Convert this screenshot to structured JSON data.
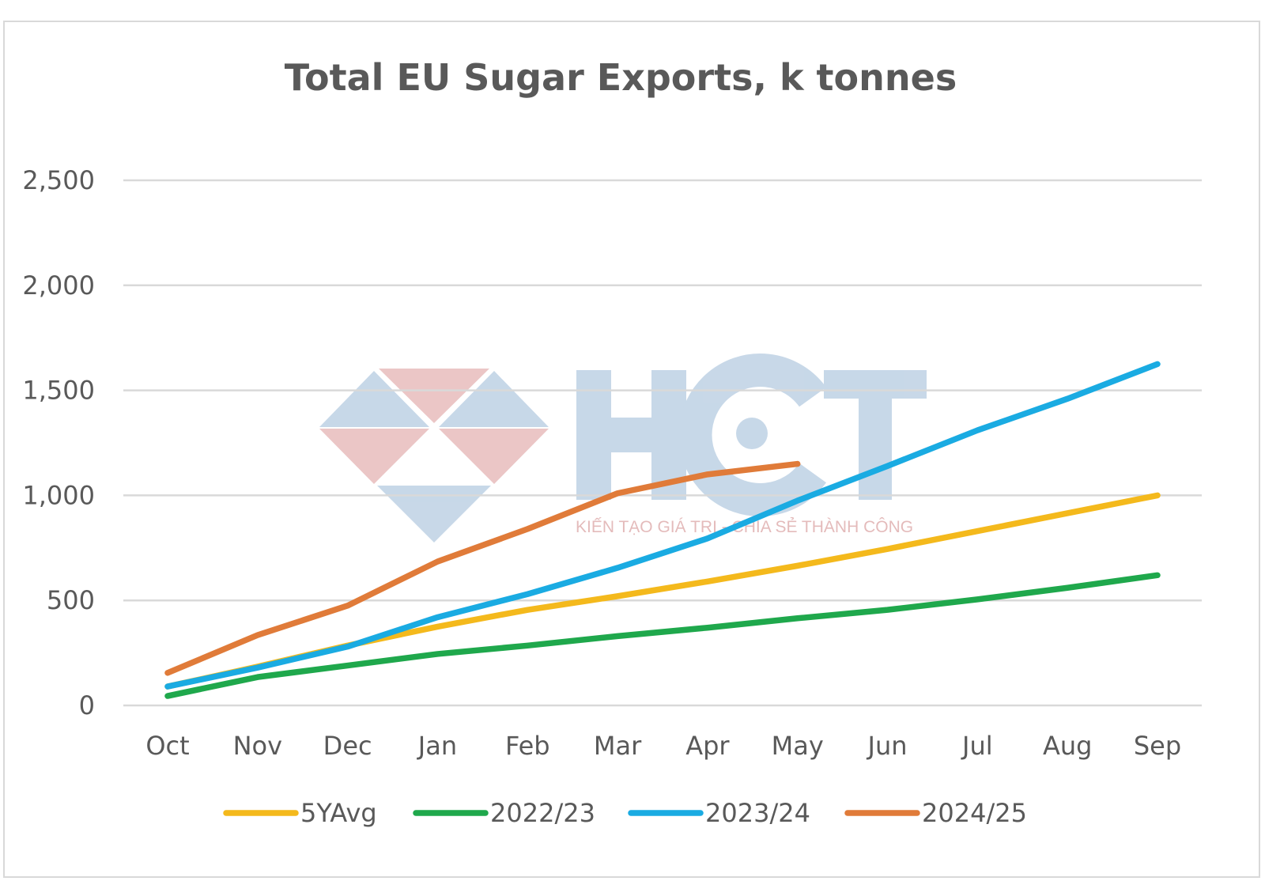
{
  "chart_data": {
    "type": "line",
    "title": "Total EU Sugar Exports, k tonnes",
    "xlabel": "",
    "ylabel": "",
    "categories": [
      "Oct",
      "Nov",
      "Dec",
      "Jan",
      "Feb",
      "Mar",
      "Apr",
      "May",
      "Jun",
      "Jul",
      "Aug",
      "Sep"
    ],
    "ylim": [
      0,
      2500
    ],
    "yticks": [
      0,
      500,
      1000,
      1500,
      2000,
      2500
    ],
    "ytick_labels": [
      "0",
      "500",
      "1,000",
      "1,500",
      "2,000",
      "2,500"
    ],
    "grid": true,
    "legend_position": "bottom",
    "series": [
      {
        "name": "5YAvg",
        "color": "#f4b91c",
        "values": [
          90,
          185,
          285,
          375,
          455,
          520,
          590,
          665,
          745,
          830,
          915,
          1000
        ]
      },
      {
        "name": "2022/23",
        "color": "#1fa84c",
        "values": [
          45,
          135,
          190,
          245,
          285,
          330,
          370,
          415,
          455,
          505,
          560,
          620
        ]
      },
      {
        "name": "2023/24",
        "color": "#1aabe2",
        "values": [
          90,
          180,
          280,
          420,
          530,
          655,
          795,
          975,
          1140,
          1310,
          1460,
          1625
        ]
      },
      {
        "name": "2024/25",
        "color": "#e07b39",
        "values": [
          155,
          335,
          475,
          685,
          840,
          1010,
          1100,
          1150,
          null,
          null,
          null,
          null
        ]
      }
    ]
  },
  "watermark": {
    "logo_text": "HCT",
    "tagline": "KIẾN TẠO GIÁ TRỊ - CHIA SẺ THÀNH CÔNG",
    "colors": {
      "blue": "#c5d6e7",
      "red": "#eac3c3"
    }
  }
}
